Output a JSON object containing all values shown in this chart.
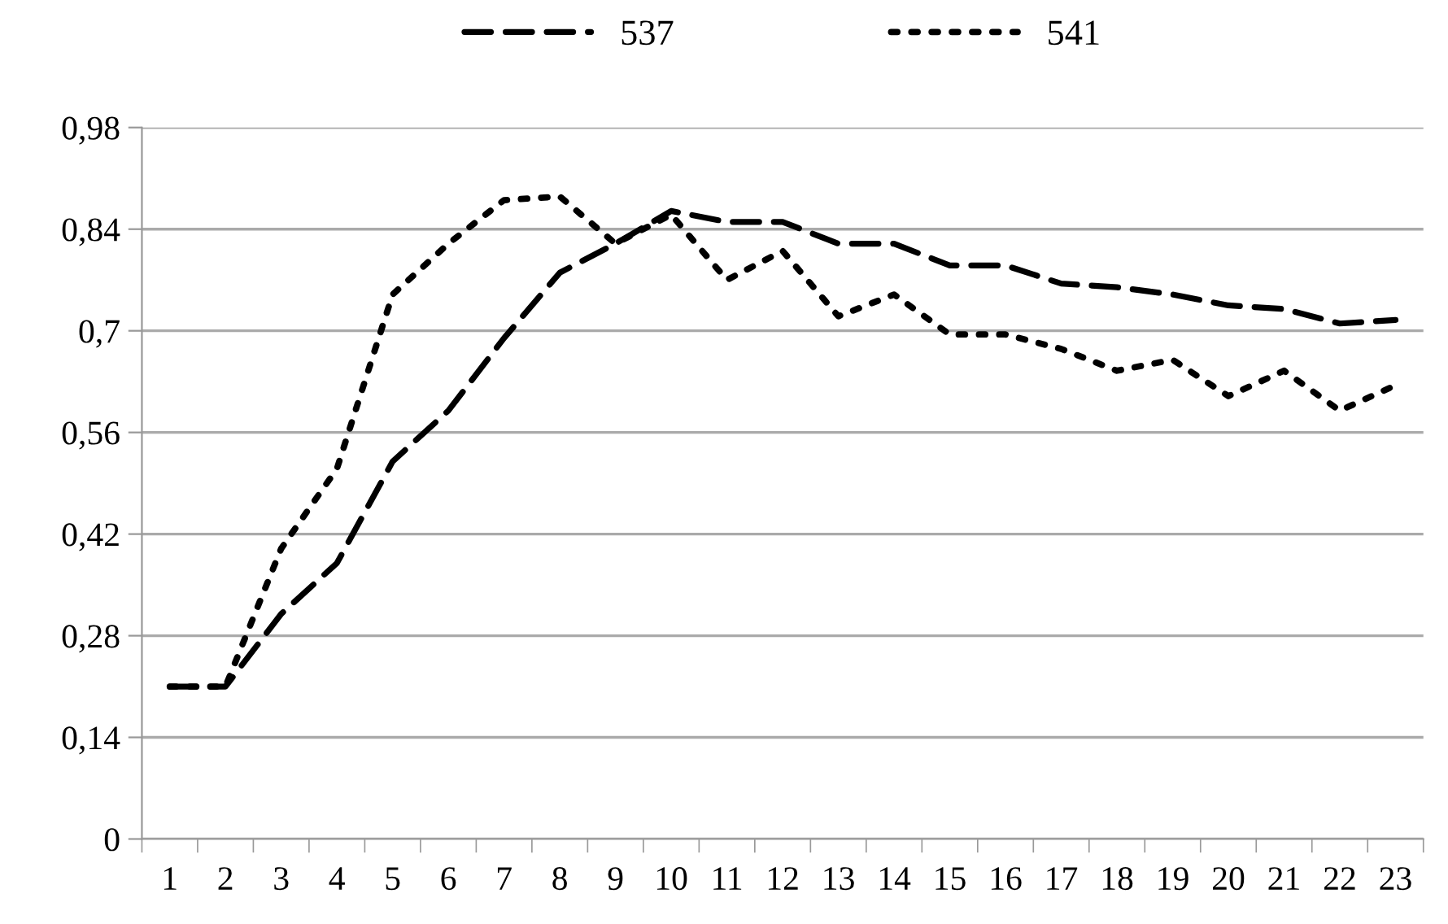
{
  "chart_data": {
    "type": "line",
    "categories": [
      "1",
      "2",
      "3",
      "4",
      "5",
      "6",
      "7",
      "8",
      "9",
      "10",
      "11",
      "12",
      "13",
      "14",
      "15",
      "16",
      "17",
      "18",
      "19",
      "20",
      "21",
      "22",
      "23"
    ],
    "series": [
      {
        "name": "537",
        "color": "#000000",
        "line_style": "dashed",
        "values": [
          0.21,
          0.21,
          0.31,
          0.38,
          0.52,
          0.59,
          0.69,
          0.78,
          0.82,
          0.865,
          0.85,
          0.85,
          0.82,
          0.82,
          0.79,
          0.79,
          0.765,
          0.76,
          0.75,
          0.735,
          0.73,
          0.71,
          0.715
        ]
      },
      {
        "name": "541",
        "color": "#000000",
        "line_style": "dotted",
        "values": [
          0.21,
          0.21,
          0.4,
          0.51,
          0.75,
          0.82,
          0.88,
          0.885,
          0.82,
          0.86,
          0.77,
          0.81,
          0.72,
          0.75,
          0.695,
          0.695,
          0.675,
          0.645,
          0.66,
          0.61,
          0.645,
          0.59,
          0.625
        ]
      }
    ],
    "ylim": [
      0,
      0.98
    ],
    "yticks": [
      0,
      {
        "value": 0.14,
        "label": "0,14"
      },
      {
        "value": 0.28,
        "label": "0,28"
      },
      {
        "value": 0.42,
        "label": "0,42"
      },
      {
        "value": 0.56,
        "label": "0,56"
      },
      {
        "value": 0.7,
        "label": "0,7"
      },
      {
        "value": 0.84,
        "label": "0,84"
      },
      {
        "value": 0.98,
        "label": "0,98"
      }
    ],
    "grid": "y",
    "legend": "top",
    "marker": "none"
  }
}
